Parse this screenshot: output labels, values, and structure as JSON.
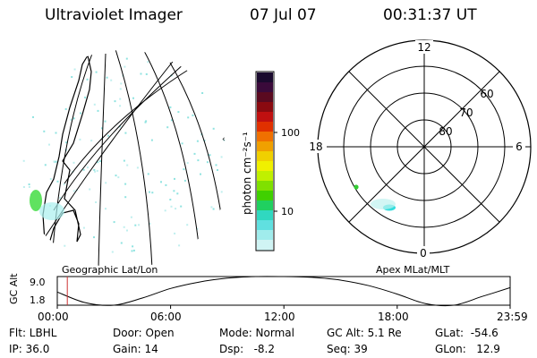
{
  "header": {
    "title": "Ultraviolet Imager",
    "date": "07 Jul 07",
    "time": "00:31:37 UT"
  },
  "panels": {
    "left_label": "Geographic Lat/Lon",
    "right_label": "Apex MLat/MLT"
  },
  "colorbar": {
    "label": "photon cm⁻²s⁻¹",
    "ticks": [
      "100",
      "10"
    ],
    "scale": "log"
  },
  "polar": {
    "mlt_labels": [
      "12",
      "18",
      "6",
      "0"
    ],
    "lat_labels": [
      "60",
      "70",
      "80"
    ]
  },
  "timeline": {
    "ylabel": "GC Alt",
    "yticks": [
      "9.0",
      "1.8"
    ],
    "xticks": [
      "00:00",
      "06:00",
      "12:00",
      "18:00",
      "23:59"
    ]
  },
  "info": {
    "flt": "Flt: LBHL",
    "ip": "IP: 36.0",
    "door": "Door: Open",
    "gain": "Gain: 14",
    "mode": "Mode: Normal",
    "dsp": "Dsp:   -8.2",
    "gcalt": "GC Alt: 5.1 Re",
    "seq": "Seq: 39",
    "glat": "GLat:  -54.6",
    "glon": "GLon:   12.9"
  },
  "chart_data": {
    "type": "line",
    "x_hours": [
      0,
      1.5,
      3,
      4.5,
      6,
      7.5,
      9,
      10.5,
      12,
      13.5,
      15,
      16.5,
      18,
      19.5,
      21,
      22.5,
      23.98
    ],
    "gc_alt": [
      5.1,
      2.4,
      1.8,
      3.6,
      6.0,
      7.6,
      8.6,
      9.0,
      9.0,
      8.8,
      8.1,
      6.7,
      4.6,
      2.2,
      1.8,
      4.0,
      6.2
    ],
    "current_time_hours": 0.53,
    "xlim": [
      0,
      23.98
    ],
    "ylim": [
      1.8,
      9.0
    ]
  },
  "colors": {
    "ink": "#000000",
    "current_marker": "#cc3333"
  }
}
